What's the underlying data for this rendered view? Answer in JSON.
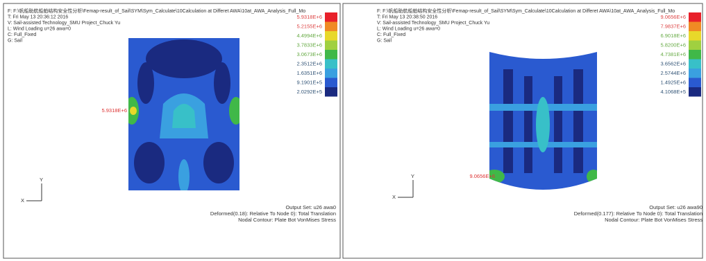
{
  "panels": [
    {
      "header": [
        "F: F:\\帆船助航船舶结构安全性分析\\Femap-result_of_Sail\\SYM\\Sym_Calculate\\10Calculation at Differet AWA\\10at_AWA_Analysis_Full_Mo",
        "T: Fri May 13 20:36:12 2016",
        "V: Sail-assisted Technology_SMU Project_Chuck Yu",
        "L: Wind Loading u=26 awa=0",
        "C: Full_Fixed",
        "G: Sail"
      ],
      "legend": [
        "5.9318E+6",
        "5.2155E+6",
        "4.4994E+6",
        "3.7833E+6",
        "3.0673E+6",
        "2.3512E+6",
        "1.6351E+6",
        "9.1901E+5",
        "2.0292E+5"
      ],
      "max_label": "5.9318E+6",
      "axis_x": "X",
      "axis_y": "Y",
      "footer": [
        "Output Set: u26 awa0",
        "Deformed(0.18): Relative To Node 0): Total Translation",
        "Nodal Contour: Plate Bot VonMises Stress"
      ]
    },
    {
      "header": [
        "F: F:\\帆船助航船舶结构安全性分析\\Femap-result_of_Sail\\SYM\\Sym_Calculate\\10Calculation at Differet AWA\\10at_AWA_Analysis_Full_Mo",
        "T: Fri May 13 20:38:50 2016",
        "V: Sail-assisted Technology_SMU Project_Chuck Yu",
        "L: Wind Loading u=26 awa=0",
        "C: Full_Fixed",
        "G: Sail"
      ],
      "legend": [
        "9.0656E+6",
        "7.9837E+6",
        "6.9018E+6",
        "5.8200E+6",
        "4.7381E+6",
        "3.6562E+6",
        "2.5744E+6",
        "1.4925E+6",
        "4.1068E+5"
      ],
      "max_label": "9.0656E+6",
      "axis_x": "X",
      "axis_y": "Y",
      "footer": [
        "Output Set: u26 awa90",
        "Deformed(0.177): Relative To Node 0): Total Translation",
        "Nodal Contour: Plate Bot VonMises Stress"
      ]
    }
  ]
}
